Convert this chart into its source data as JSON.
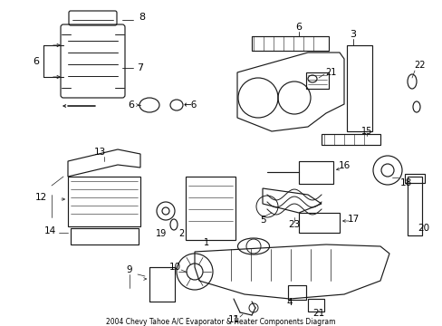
{
  "title": "2004 Chevy Tahoe A/C Evaporator & Heater Components Diagram",
  "background_color": "#ffffff",
  "line_color": "#1a1a1a",
  "fig_width": 4.89,
  "fig_height": 3.6,
  "dpi": 100,
  "lw": 0.85
}
